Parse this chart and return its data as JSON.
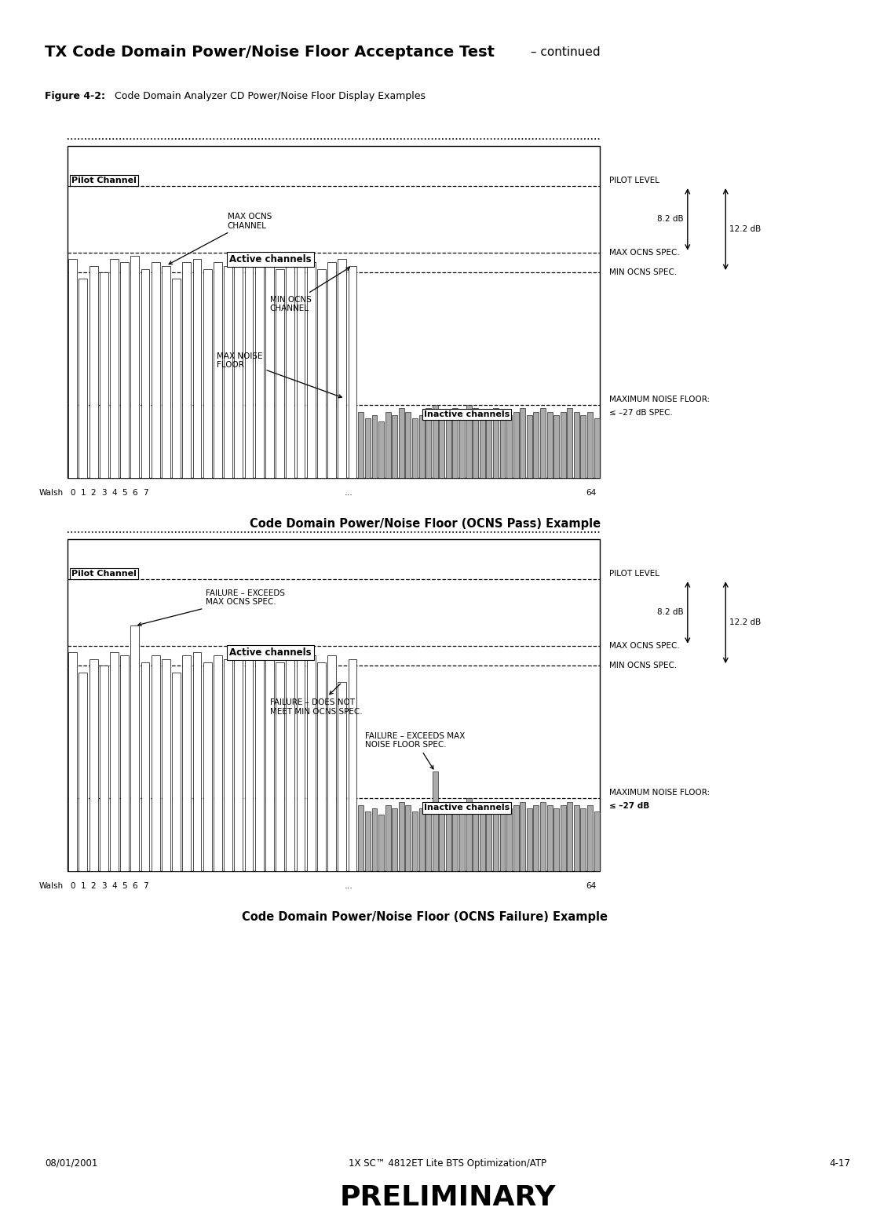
{
  "page_title_bold": "TX Code Domain Power/Noise Floor Acceptance Test",
  "page_title_normal": " – continued",
  "figure_label_bold": "Figure 4-2:",
  "figure_label_normal": " Code Domain Analyzer CD Power/Noise Floor Display Examples",
  "footer_left": "08/01/2001",
  "footer_center": "1X SC™ 4812ET Lite BTS Optimization/ATP",
  "footer_right": "4-17",
  "footer_prelim": "PRELIMINARY",
  "chapter_num": "4",
  "chart1_title": "Code Domain Power/Noise Floor (OCNS Pass) Example",
  "chart2_title": "Code Domain Power/Noise Floor (OCNS Failure) Example",
  "pilot_label": "Pilot Channel",
  "active_label": "Active channels",
  "inactive_label": "Inactive channels",
  "pilot_level_label": "PILOT LEVEL",
  "max_ocns_spec_label": "MAX OCNS SPEC.",
  "min_ocns_spec_label": "MIN OCNS SPEC.",
  "noise_floor_label1": "MAXIMUM NOISE FLOOR:",
  "noise_floor_label2_pass": "≤ –27 dB SPEC.",
  "noise_floor_label2_fail": "≤ –27 dB",
  "max_ocns_channel_label": "MAX OCNS\nCHANNEL",
  "min_ocns_channel_label": "MIN OCNS\nCHANNEL",
  "max_noise_floor_label": "MAX NOISE\nFLOOR",
  "fail1_label": "FAILURE – EXCEEDS\nMAX OCNS SPEC.",
  "fail2_label": "FAILURE – DOES NOT\nMEET MIN OCNS SPEC.",
  "fail3_label": "FAILURE – EXCEEDS MAX\nNOISE FLOOR SPEC.",
  "db_left": "8.2 dB",
  "db_right": "12.2 dB",
  "walsh_label": "Walsh",
  "walsh_ticks": [
    "0",
    "1",
    "2",
    "3",
    "4",
    "5",
    "6",
    "7"
  ],
  "walsh_end": "64",
  "walsh_dots": "...",
  "bg_color": "#ffffff",
  "bar_active_facecolor": "#ffffff",
  "bar_active_edgecolor": "#000000",
  "bar_inactive_facecolor": "#aaaaaa",
  "bar_inactive_edgecolor": "#000000",
  "pilot_level": 0.88,
  "max_ocns_spec": 0.68,
  "min_ocns_spec": 0.62,
  "noise_floor_spec": 0.22,
  "active_bars_pass": [
    0.66,
    0.6,
    0.64,
    0.62,
    0.66,
    0.65,
    0.67,
    0.63,
    0.65,
    0.64,
    0.6,
    0.65,
    0.66,
    0.63,
    0.65,
    0.64,
    0.67,
    0.65,
    0.64,
    0.65,
    0.63,
    0.66,
    0.64,
    0.65,
    0.63,
    0.65,
    0.66,
    0.64
  ],
  "inactive_bars_pass": [
    0.2,
    0.18,
    0.19,
    0.17,
    0.2,
    0.19,
    0.21,
    0.2,
    0.18,
    0.19,
    0.21,
    0.22,
    0.2,
    0.19,
    0.21,
    0.2,
    0.22,
    0.21,
    0.19,
    0.2,
    0.21,
    0.2,
    0.19,
    0.2,
    0.21,
    0.19,
    0.2,
    0.21,
    0.2,
    0.19,
    0.2,
    0.21,
    0.2,
    0.19,
    0.2,
    0.18
  ],
  "active_bars_fail": [
    0.66,
    0.6,
    0.64,
    0.62,
    0.66,
    0.65,
    0.74,
    0.63,
    0.65,
    0.64,
    0.6,
    0.65,
    0.66,
    0.63,
    0.65,
    0.64,
    0.67,
    0.65,
    0.64,
    0.65,
    0.63,
    0.66,
    0.64,
    0.65,
    0.63,
    0.65,
    0.57,
    0.64
  ],
  "inactive_bars_fail": [
    0.2,
    0.18,
    0.19,
    0.17,
    0.2,
    0.19,
    0.21,
    0.2,
    0.18,
    0.19,
    0.21,
    0.3,
    0.2,
    0.19,
    0.21,
    0.2,
    0.22,
    0.21,
    0.19,
    0.2,
    0.21,
    0.2,
    0.19,
    0.2,
    0.21,
    0.19,
    0.2,
    0.21,
    0.2,
    0.19,
    0.2,
    0.21,
    0.2,
    0.19,
    0.2,
    0.18
  ]
}
